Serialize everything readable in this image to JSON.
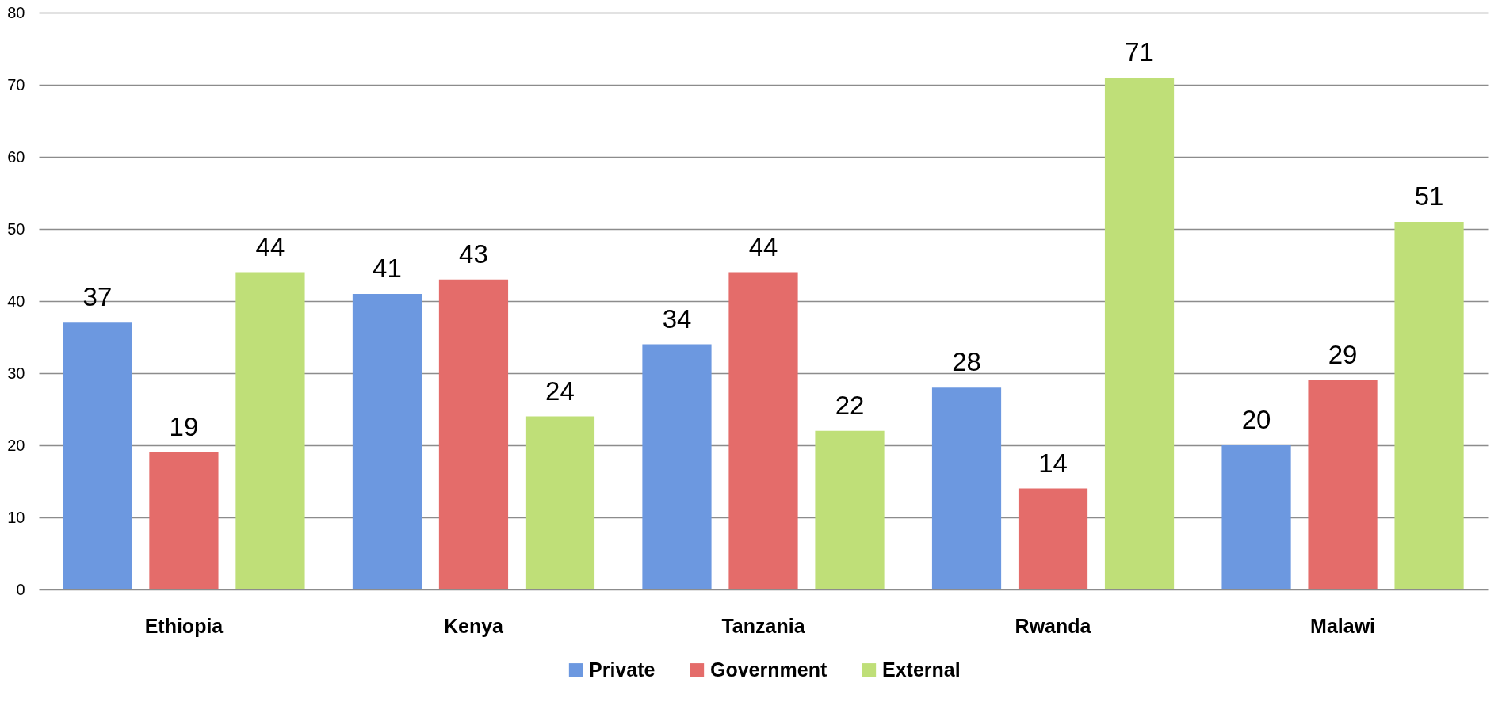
{
  "chart_data": {
    "type": "bar",
    "categories": [
      "Ethiopia",
      "Kenya",
      "Tanzania",
      "Rwanda",
      "Malawi"
    ],
    "series": [
      {
        "name": "Private",
        "color": "#6c98e0",
        "values": [
          37,
          41,
          34,
          28,
          20
        ]
      },
      {
        "name": "Government",
        "color": "#e46c6a",
        "values": [
          19,
          43,
          44,
          14,
          29
        ]
      },
      {
        "name": "External",
        "color": "#bfdf78",
        "values": [
          44,
          24,
          22,
          71,
          51
        ]
      }
    ],
    "ylim": [
      0,
      80
    ],
    "yticks": [
      0,
      10,
      20,
      30,
      40,
      50,
      60,
      70,
      80
    ],
    "grid": "y",
    "legend": "bottom",
    "data_labels": true
  }
}
